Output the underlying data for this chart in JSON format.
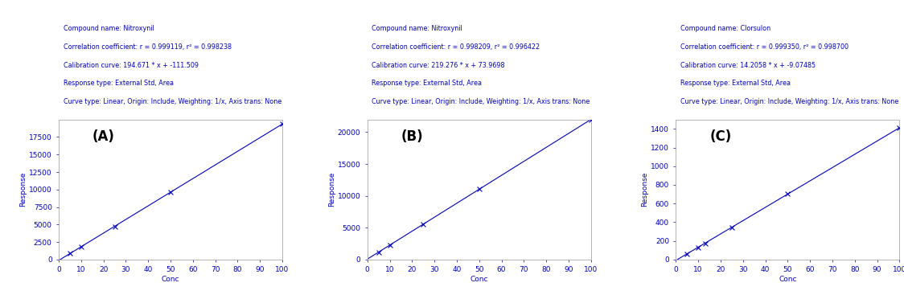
{
  "panels": [
    {
      "label": "(A)",
      "compound": "Nitroxynil",
      "corr_coeff": "r = 0.999119, r² = 0.998238",
      "cal_curve": "194.671 * x + -111.509",
      "response_type": "External Std, Area",
      "curve_type": "Linear, Origin: Include, Weighting: 1/x, Axis trans: None",
      "slope": 194.671,
      "intercept": -111.509,
      "x_scatter": [
        5,
        10,
        25,
        50,
        100
      ],
      "xlabel": "Conc",
      "ylabel": "Response",
      "xlim": [
        0,
        100
      ],
      "ylim": [
        0,
        20000
      ],
      "yticks": [
        0,
        2500,
        5000,
        7500,
        10000,
        12500,
        15000,
        17500
      ],
      "xticks": [
        0,
        10,
        20,
        30,
        40,
        50,
        60,
        70,
        80,
        90,
        100
      ]
    },
    {
      "label": "(B)",
      "compound": "Nitroxynil",
      "corr_coeff": "r = 0.998209, r² = 0.996422",
      "cal_curve": "219.276 * x + 73.9698",
      "response_type": "External Std, Area",
      "curve_type": "Linear, Origin: Include, Weighting: 1/x, Axis trans: None",
      "slope": 219.276,
      "intercept": 73.9698,
      "x_scatter": [
        5,
        10,
        25,
        50,
        100
      ],
      "xlabel": "Conc",
      "ylabel": "Response",
      "xlim": [
        0,
        100
      ],
      "ylim": [
        0,
        22000
      ],
      "yticks": [
        0,
        5000,
        10000,
        15000,
        20000
      ],
      "xticks": [
        0,
        10,
        20,
        30,
        40,
        50,
        60,
        70,
        80,
        90,
        100
      ]
    },
    {
      "label": "(C)",
      "compound": "Clorsulon",
      "corr_coeff": "r = 0.999350, r² = 0.998700",
      "cal_curve": "14.2058 * x + -9.07485",
      "response_type": "External Std, Area",
      "curve_type": "Linear, Origin: Include, Weighting: 1/x, Axis trans: None",
      "slope": 14.2058,
      "intercept": -9.07485,
      "x_scatter": [
        5,
        10,
        13,
        25,
        50,
        100
      ],
      "xlabel": "Conc",
      "ylabel": "Response",
      "xlim": [
        0,
        100
      ],
      "ylim": [
        0,
        1500
      ],
      "yticks": [
        0,
        200,
        400,
        600,
        800,
        1000,
        1200,
        1400
      ],
      "xticks": [
        0,
        10,
        20,
        30,
        40,
        50,
        60,
        70,
        80,
        90,
        100
      ]
    }
  ],
  "line_color": "#0000BB",
  "scatter_color": "#0000BB",
  "text_color": "#0000BB",
  "bg_color": "#FFFFFF",
  "header_fontsize": 5.8,
  "label_fontsize": 12,
  "tick_fontsize": 6.5,
  "axis_label_fontsize": 6.5
}
